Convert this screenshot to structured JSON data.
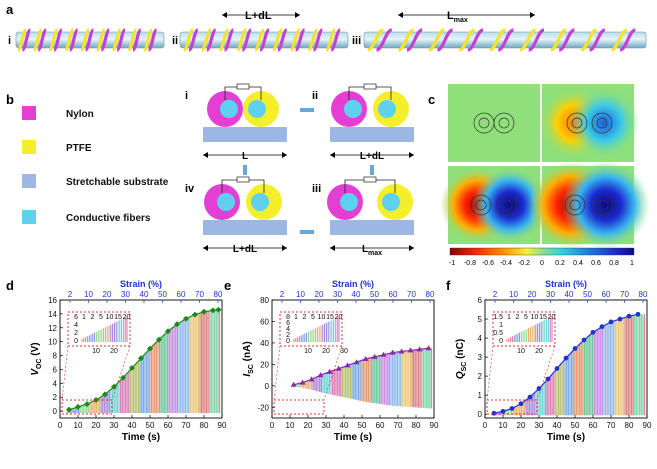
{
  "panel_labels": {
    "a": "a",
    "b": "b",
    "c": "c",
    "d": "d",
    "e": "e",
    "f": "f"
  },
  "panel_a": {
    "roman": [
      "i",
      "ii",
      "iii"
    ],
    "length_labels": [
      "L+dL",
      "L"
    ],
    "length_sub": "max"
  },
  "panel_b": {
    "legend": [
      "Nylon",
      "PTFE",
      "Stretchable substrate",
      "Conductive fibers"
    ],
    "colors": {
      "nylon": "#e43fd5",
      "ptfe": "#f5ee2a",
      "substrate": "#9db7e4",
      "fiber": "#5fd1ee"
    },
    "roman": [
      "i",
      "ii",
      "iii",
      "iv"
    ],
    "lengths": [
      "L",
      "L+dL",
      "L",
      "L+dL"
    ],
    "length_sub": "max"
  },
  "panel_c": {
    "colorbar_ticks": [
      "-1",
      "-0.8",
      "-0.6",
      "-0.4",
      "-0.2",
      "0",
      "0.2",
      "0.4",
      "0.6",
      "0.8",
      "1"
    ]
  },
  "chart_data": [
    {
      "type": "line",
      "panel": "d",
      "xlabel": "Time (s)",
      "ylabel": "V",
      "ylabel_sub": "OC",
      "ylabel_unit": "(V)",
      "top_axis_label": "Strain (%)",
      "x_ticks": [
        0,
        10,
        20,
        30,
        40,
        50,
        60,
        70,
        80,
        90
      ],
      "y_ticks": [
        0,
        2,
        4,
        6,
        8,
        10,
        12,
        14,
        16
      ],
      "top_ticks": [
        2,
        10,
        20,
        30,
        40,
        50,
        60,
        70,
        80
      ],
      "xlim": [
        0,
        90
      ],
      "ylim": [
        -1,
        16
      ],
      "series": [
        {
          "name": "envelope",
          "color": "#1a8a1a",
          "x": [
            5,
            10,
            15,
            20,
            25,
            30,
            35,
            40,
            45,
            50,
            55,
            60,
            65,
            70,
            75,
            80,
            85,
            88
          ],
          "y": [
            0.2,
            0.6,
            1.0,
            1.6,
            2.4,
            3.5,
            4.8,
            6.2,
            7.6,
            9.0,
            10.3,
            11.5,
            12.5,
            13.3,
            13.9,
            14.3,
            14.5,
            14.6
          ]
        }
      ],
      "inset": {
        "x_ticks": [
          10,
          20
        ],
        "y_ticks": [
          0,
          2,
          4,
          6
        ],
        "top_ticks": [
          1,
          2,
          5,
          10,
          15,
          20
        ]
      }
    },
    {
      "type": "line",
      "panel": "e",
      "xlabel": "Time (s)",
      "ylabel": "I",
      "ylabel_sub": "SC",
      "ylabel_unit": "(nA)",
      "top_axis_label": "Strain (%)",
      "x_ticks": [
        0,
        10,
        20,
        30,
        40,
        50,
        60,
        70,
        80,
        90
      ],
      "y_ticks": [
        -20,
        0,
        20,
        40,
        60,
        80
      ],
      "top_ticks": [
        2,
        10,
        20,
        30,
        40,
        50,
        60,
        70,
        80
      ],
      "xlim": [
        0,
        90
      ],
      "ylim": [
        -30,
        80
      ],
      "series": [
        {
          "name": "envelope",
          "color": "#8a2aa8",
          "x": [
            12,
            17,
            22,
            27,
            32,
            37,
            42,
            47,
            52,
            57,
            62,
            67,
            72,
            77,
            82,
            87
          ],
          "y": [
            1,
            3,
            6,
            10,
            13,
            16,
            19,
            22,
            25,
            27,
            29,
            31,
            32,
            33,
            34,
            35
          ]
        }
      ],
      "inset": {
        "x_ticks": [
          10,
          20,
          30
        ],
        "y_ticks": [
          0,
          2,
          4,
          6,
          8
        ],
        "top_ticks": [
          1,
          2,
          5,
          10,
          15,
          20
        ]
      }
    },
    {
      "type": "line",
      "panel": "f",
      "xlabel": "Time (s)",
      "ylabel": "Q",
      "ylabel_sub": "SC",
      "ylabel_unit": "(nC)",
      "top_axis_label": "Strain (%)",
      "x_ticks": [
        0,
        10,
        20,
        30,
        40,
        50,
        60,
        70,
        80,
        90
      ],
      "y_ticks": [
        0,
        1,
        2,
        3,
        4,
        5,
        6
      ],
      "top_ticks": [
        2,
        10,
        20,
        30,
        40,
        50,
        60,
        70,
        80
      ],
      "xlim": [
        0,
        90
      ],
      "ylim": [
        -0.2,
        6
      ],
      "series": [
        {
          "name": "envelope",
          "color": "#2233cc",
          "x": [
            5,
            10,
            15,
            20,
            25,
            30,
            35,
            40,
            45,
            50,
            55,
            60,
            65,
            70,
            75,
            80,
            85
          ],
          "y": [
            0.05,
            0.15,
            0.3,
            0.55,
            0.9,
            1.35,
            1.85,
            2.4,
            2.95,
            3.45,
            3.9,
            4.3,
            4.6,
            4.85,
            5.0,
            5.15,
            5.25
          ]
        }
      ],
      "inset": {
        "x_ticks": [
          10,
          20
        ],
        "y_ticks": [
          0,
          0.5,
          1.0,
          1.5
        ],
        "top_ticks": [
          1,
          2,
          5,
          10,
          15,
          20
        ]
      }
    }
  ]
}
